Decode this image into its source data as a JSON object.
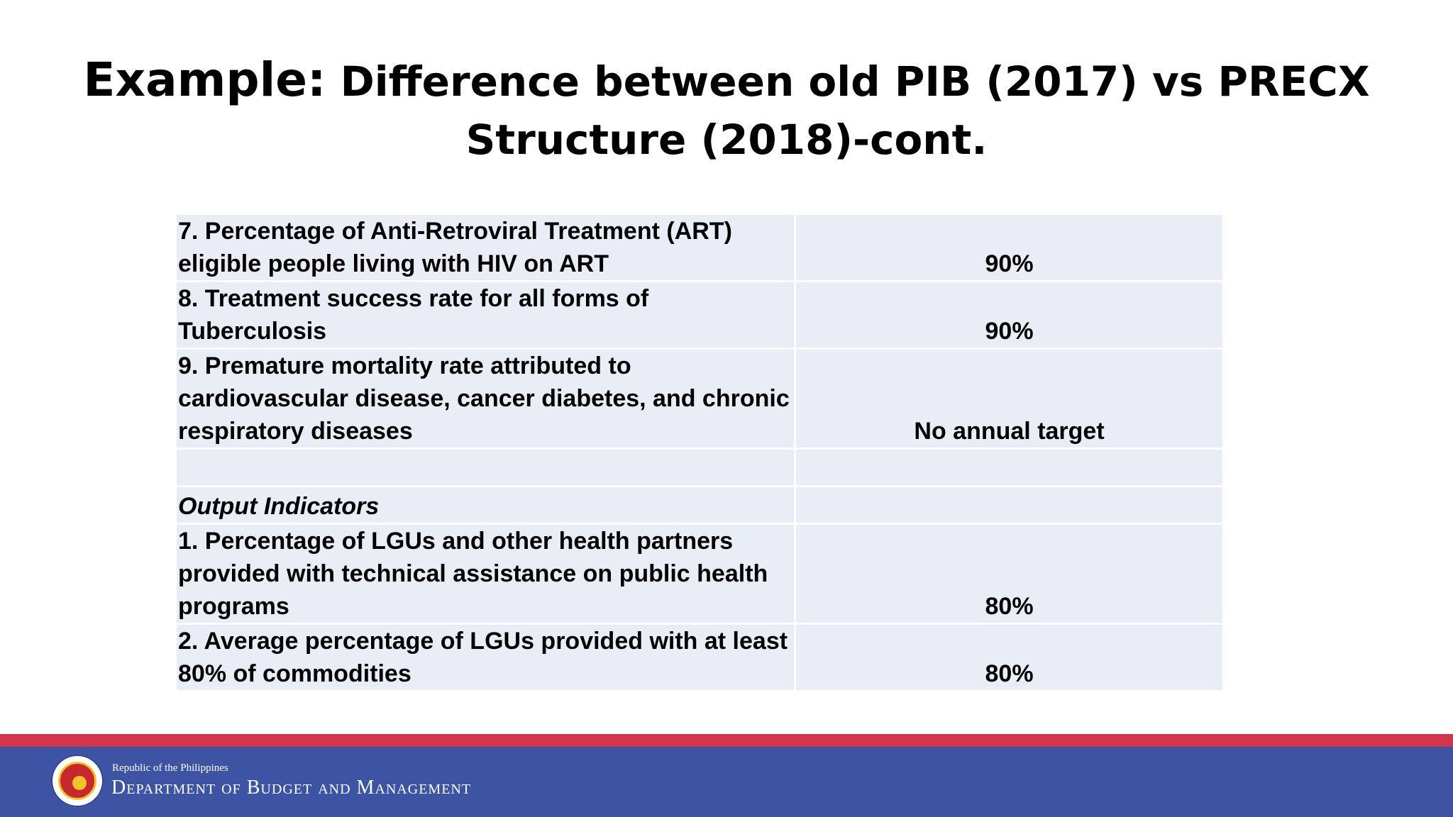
{
  "slide": {
    "title_lead": "Example:",
    "title_rest": " Difference between old PIB (2017) vs PRECX Structure (2018)-cont."
  },
  "table": {
    "rows": [
      {
        "label": "7. Percentage of Anti-Retroviral Treatment (ART) eligible people living with HIV on ART",
        "value": "90%"
      },
      {
        "label": "8. Treatment success rate for all forms of Tuberculosis",
        "value": "90%"
      },
      {
        "label": "9. Premature mortality rate attributed to cardiovascular disease, cancer diabetes, and chronic respiratory diseases",
        "value": "No annual target"
      },
      {
        "label": "",
        "value": ""
      },
      {
        "label": "Output Indicators",
        "value": ""
      },
      {
        "label": "1. Percentage of LGUs and other health partners provided with technical assistance on public health programs",
        "value": "80%"
      },
      {
        "label": "2. Average percentage of LGUs provided with at least 80% of commodities",
        "value": "80%"
      }
    ]
  },
  "footer": {
    "country": "Republic of the Philippines",
    "department": "Department of Budget and Management",
    "seal_icon": "dbm-seal-icon",
    "colors": {
      "red_band": "#d3364a",
      "blue_band": "#3c54a3"
    }
  }
}
